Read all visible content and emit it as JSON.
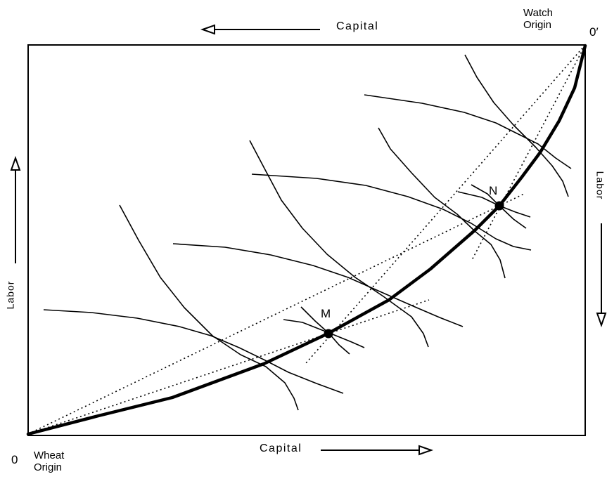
{
  "top_axis_label": "Capital",
  "bottom_axis_label": "Capital",
  "left_axis_label": "Labor",
  "right_axis_label": "Labor",
  "watch_origin": {
    "line1": "Watch",
    "line2": "Origin"
  },
  "wheat_origin": {
    "line1": "Wheat",
    "line2": "Origin"
  },
  "origin_zero": "0",
  "origin_zero_prime": "0′",
  "point_m": "M",
  "point_n": "N",
  "colors": {
    "ink": "#000000",
    "background": "#ffffff"
  }
}
